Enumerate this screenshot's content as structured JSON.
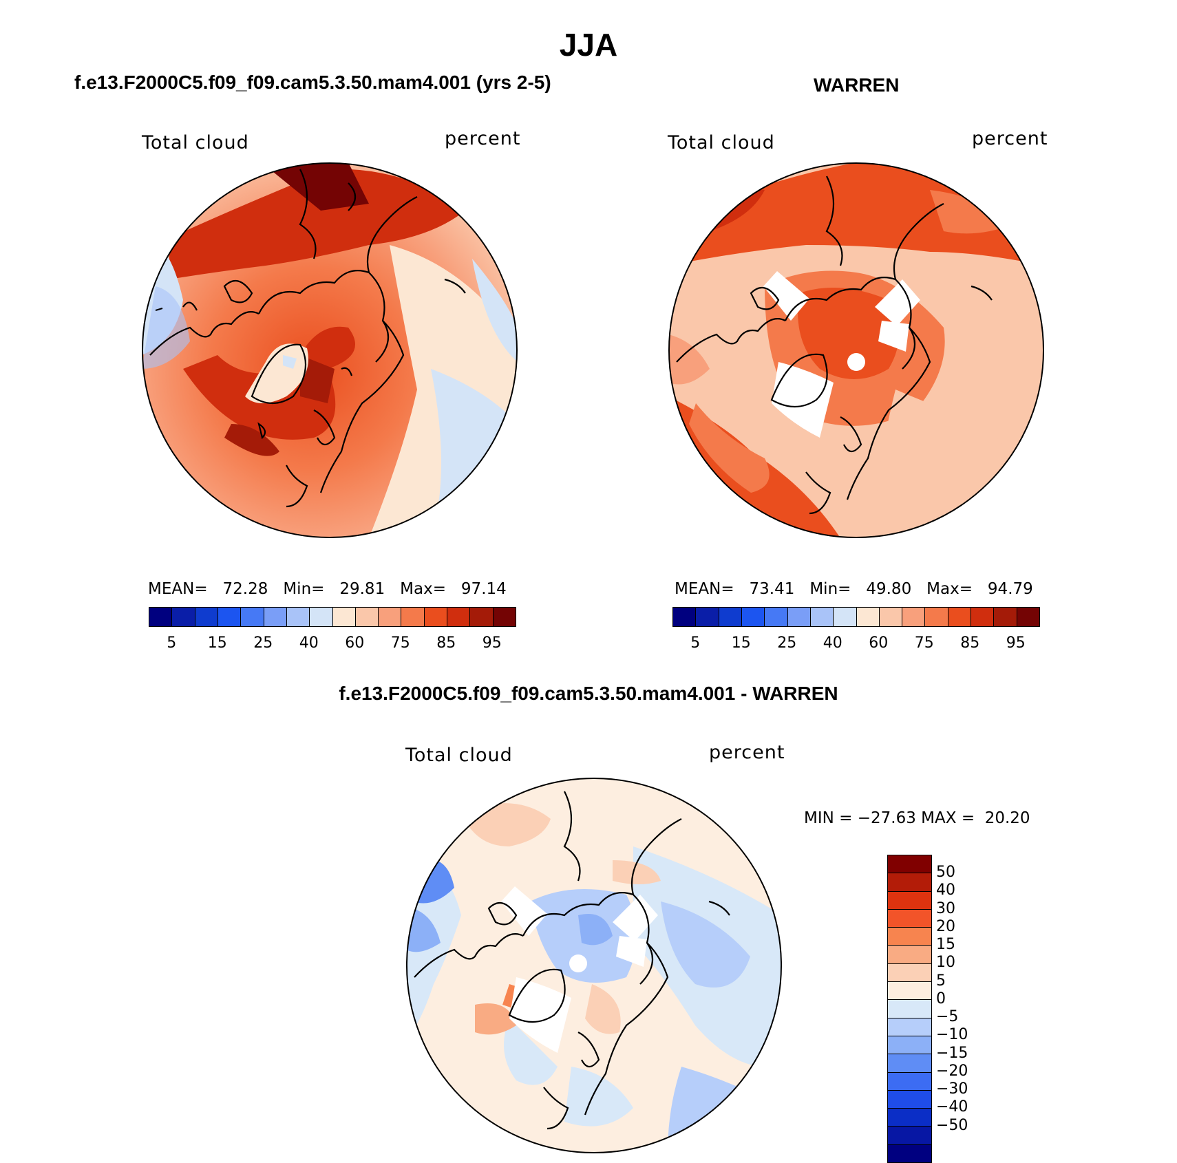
{
  "figure": {
    "season_title": "JJA"
  },
  "panels": {
    "model": {
      "case_title": "f.e13.F2000C5.f09_f09.cam5.3.50.mam4.001 (yrs 2-5)",
      "variable": "Total cloud",
      "units": "percent",
      "stats": {
        "mean_label": "MEAN=",
        "mean": "72.28",
        "min_label": "Min=",
        "min": "29.81",
        "max_label": "Max=",
        "max": "97.14"
      }
    },
    "obs": {
      "case_title": "WARREN",
      "variable": "Total cloud",
      "units": "percent",
      "stats": {
        "mean_label": "MEAN=",
        "mean": "73.41",
        "min_label": "Min=",
        "min": "49.80",
        "max_label": "Max=",
        "max": "94.79"
      }
    },
    "diff": {
      "case_title": "f.e13.F2000C5.f09_f09.cam5.3.50.mam4.001 - WARREN",
      "variable": "Total cloud",
      "units": "percent",
      "stats": {
        "min_label": "MIN =",
        "min": "−27.63",
        "max_label": "MAX =",
        "max": "20.20"
      }
    }
  },
  "colorbars": {
    "absolute": {
      "colors": [
        "#00007f",
        "#0a1ea8",
        "#0f3ccf",
        "#1c55f0",
        "#4679f5",
        "#7a9ef7",
        "#a9c3f8",
        "#d4e4f7",
        "#fce7d3",
        "#fac7aa",
        "#f8a07c",
        "#f47a4b",
        "#ea4e1e",
        "#d02e0e",
        "#a41b08",
        "#740404"
      ],
      "tick_labels": [
        "5",
        "15",
        "25",
        "40",
        "60",
        "75",
        "85",
        "95"
      ]
    },
    "difference": {
      "colors": [
        "#800000",
        "#b31c08",
        "#de330f",
        "#f25429",
        "#f7844f",
        "#f9ab83",
        "#fbd0b6",
        "#fdeee0",
        "#d8e8f8",
        "#b6cefa",
        "#8cb0f7",
        "#5f8df5",
        "#3c6cf3",
        "#1f4de8",
        "#0b2ec6",
        "#0717a4",
        "#000080"
      ],
      "tick_labels": [
        "50",
        "40",
        "30",
        "20",
        "15",
        "10",
        "5",
        "0",
        "−5",
        "−10",
        "−15",
        "−20",
        "−30",
        "−40",
        "−50"
      ]
    }
  }
}
